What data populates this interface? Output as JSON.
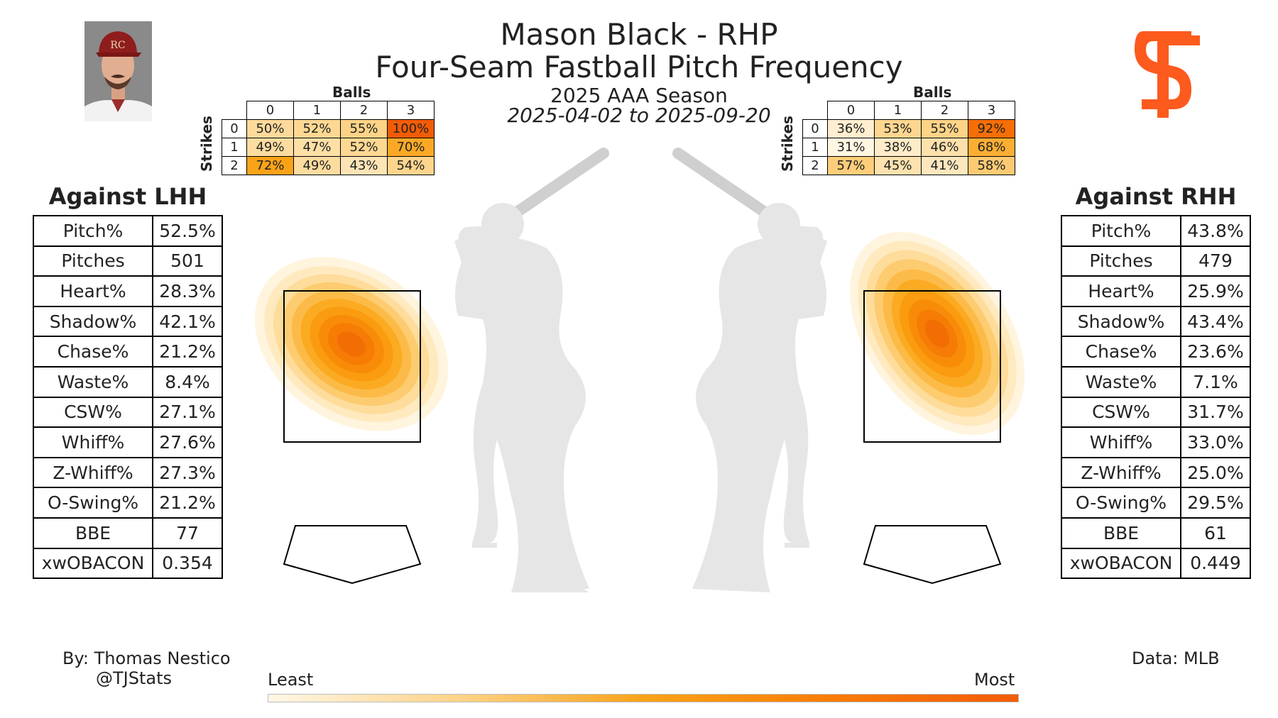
{
  "header": {
    "title_line1": "Mason Black - RHP",
    "title_line2": "Four-Seam Fastball Pitch Frequency",
    "season": "2025 AAA Season",
    "date_range": "2025-04-02 to 2025-09-20"
  },
  "team_logo": {
    "icon": "sf-giants-logo",
    "color": "#fd5a1e"
  },
  "count_tables": {
    "balls_label": "Balls",
    "strikes_label": "Strikes",
    "ball_headers": [
      "0",
      "1",
      "2",
      "3"
    ],
    "strike_headers": [
      "0",
      "1",
      "2"
    ],
    "lhh": [
      [
        "50%",
        "52%",
        "55%",
        "100%"
      ],
      [
        "49%",
        "47%",
        "52%",
        "70%"
      ],
      [
        "72%",
        "49%",
        "43%",
        "54%"
      ]
    ],
    "rhh": [
      [
        "36%",
        "53%",
        "55%",
        "92%"
      ],
      [
        "31%",
        "38%",
        "46%",
        "68%"
      ],
      [
        "57%",
        "45%",
        "41%",
        "58%"
      ]
    ]
  },
  "lhh": {
    "title": "Against LHH",
    "rows": [
      {
        "label": "Pitch%",
        "value": "52.5%"
      },
      {
        "label": "Pitches",
        "value": "501"
      },
      {
        "label": "Heart%",
        "value": "28.3%"
      },
      {
        "label": "Shadow%",
        "value": "42.1%"
      },
      {
        "label": "Chase%",
        "value": "21.2%"
      },
      {
        "label": "Waste%",
        "value": "8.4%"
      },
      {
        "label": "CSW%",
        "value": "27.1%"
      },
      {
        "label": "Whiff%",
        "value": "27.6%"
      },
      {
        "label": "Z-Whiff%",
        "value": "27.3%"
      },
      {
        "label": "O-Swing%",
        "value": "21.2%"
      },
      {
        "label": "BBE",
        "value": "77"
      },
      {
        "label": "xwOBACON",
        "value": "0.354"
      }
    ]
  },
  "rhh": {
    "title": "Against RHH",
    "rows": [
      {
        "label": "Pitch%",
        "value": "43.8%"
      },
      {
        "label": "Pitches",
        "value": "479"
      },
      {
        "label": "Heart%",
        "value": "25.9%"
      },
      {
        "label": "Shadow%",
        "value": "43.4%"
      },
      {
        "label": "Chase%",
        "value": "23.6%"
      },
      {
        "label": "Waste%",
        "value": "7.1%"
      },
      {
        "label": "CSW%",
        "value": "31.7%"
      },
      {
        "label": "Whiff%",
        "value": "33.0%"
      },
      {
        "label": "Z-Whiff%",
        "value": "25.0%"
      },
      {
        "label": "O-Swing%",
        "value": "29.5%"
      },
      {
        "label": "BBE",
        "value": "61"
      },
      {
        "label": "xwOBACON",
        "value": "0.449"
      }
    ]
  },
  "legend": {
    "least": "Least",
    "most": "Most"
  },
  "footer": {
    "by": "By: Thomas Nestico",
    "handle": "@TJStats",
    "source": "Data: MLB"
  },
  "colors": {
    "low": "#fff7e6",
    "mid": "#fba318",
    "high": "#f25c05",
    "silhouette": "#e6e6e6"
  },
  "chart_data": {
    "type": "heatmap",
    "series": [
      {
        "name": "Against LHH",
        "grid": [
          [
            50,
            52,
            55,
            100
          ],
          [
            49,
            47,
            52,
            70
          ],
          [
            72,
            49,
            43,
            54
          ]
        ]
      },
      {
        "name": "Against RHH",
        "grid": [
          [
            36,
            53,
            55,
            92
          ],
          [
            31,
            38,
            46,
            68
          ],
          [
            57,
            45,
            41,
            58
          ]
        ]
      }
    ],
    "x_categories": [
      "0",
      "1",
      "2",
      "3"
    ],
    "y_categories": [
      "0",
      "1",
      "2"
    ],
    "xlabel": "Balls",
    "ylabel": "Strikes"
  }
}
